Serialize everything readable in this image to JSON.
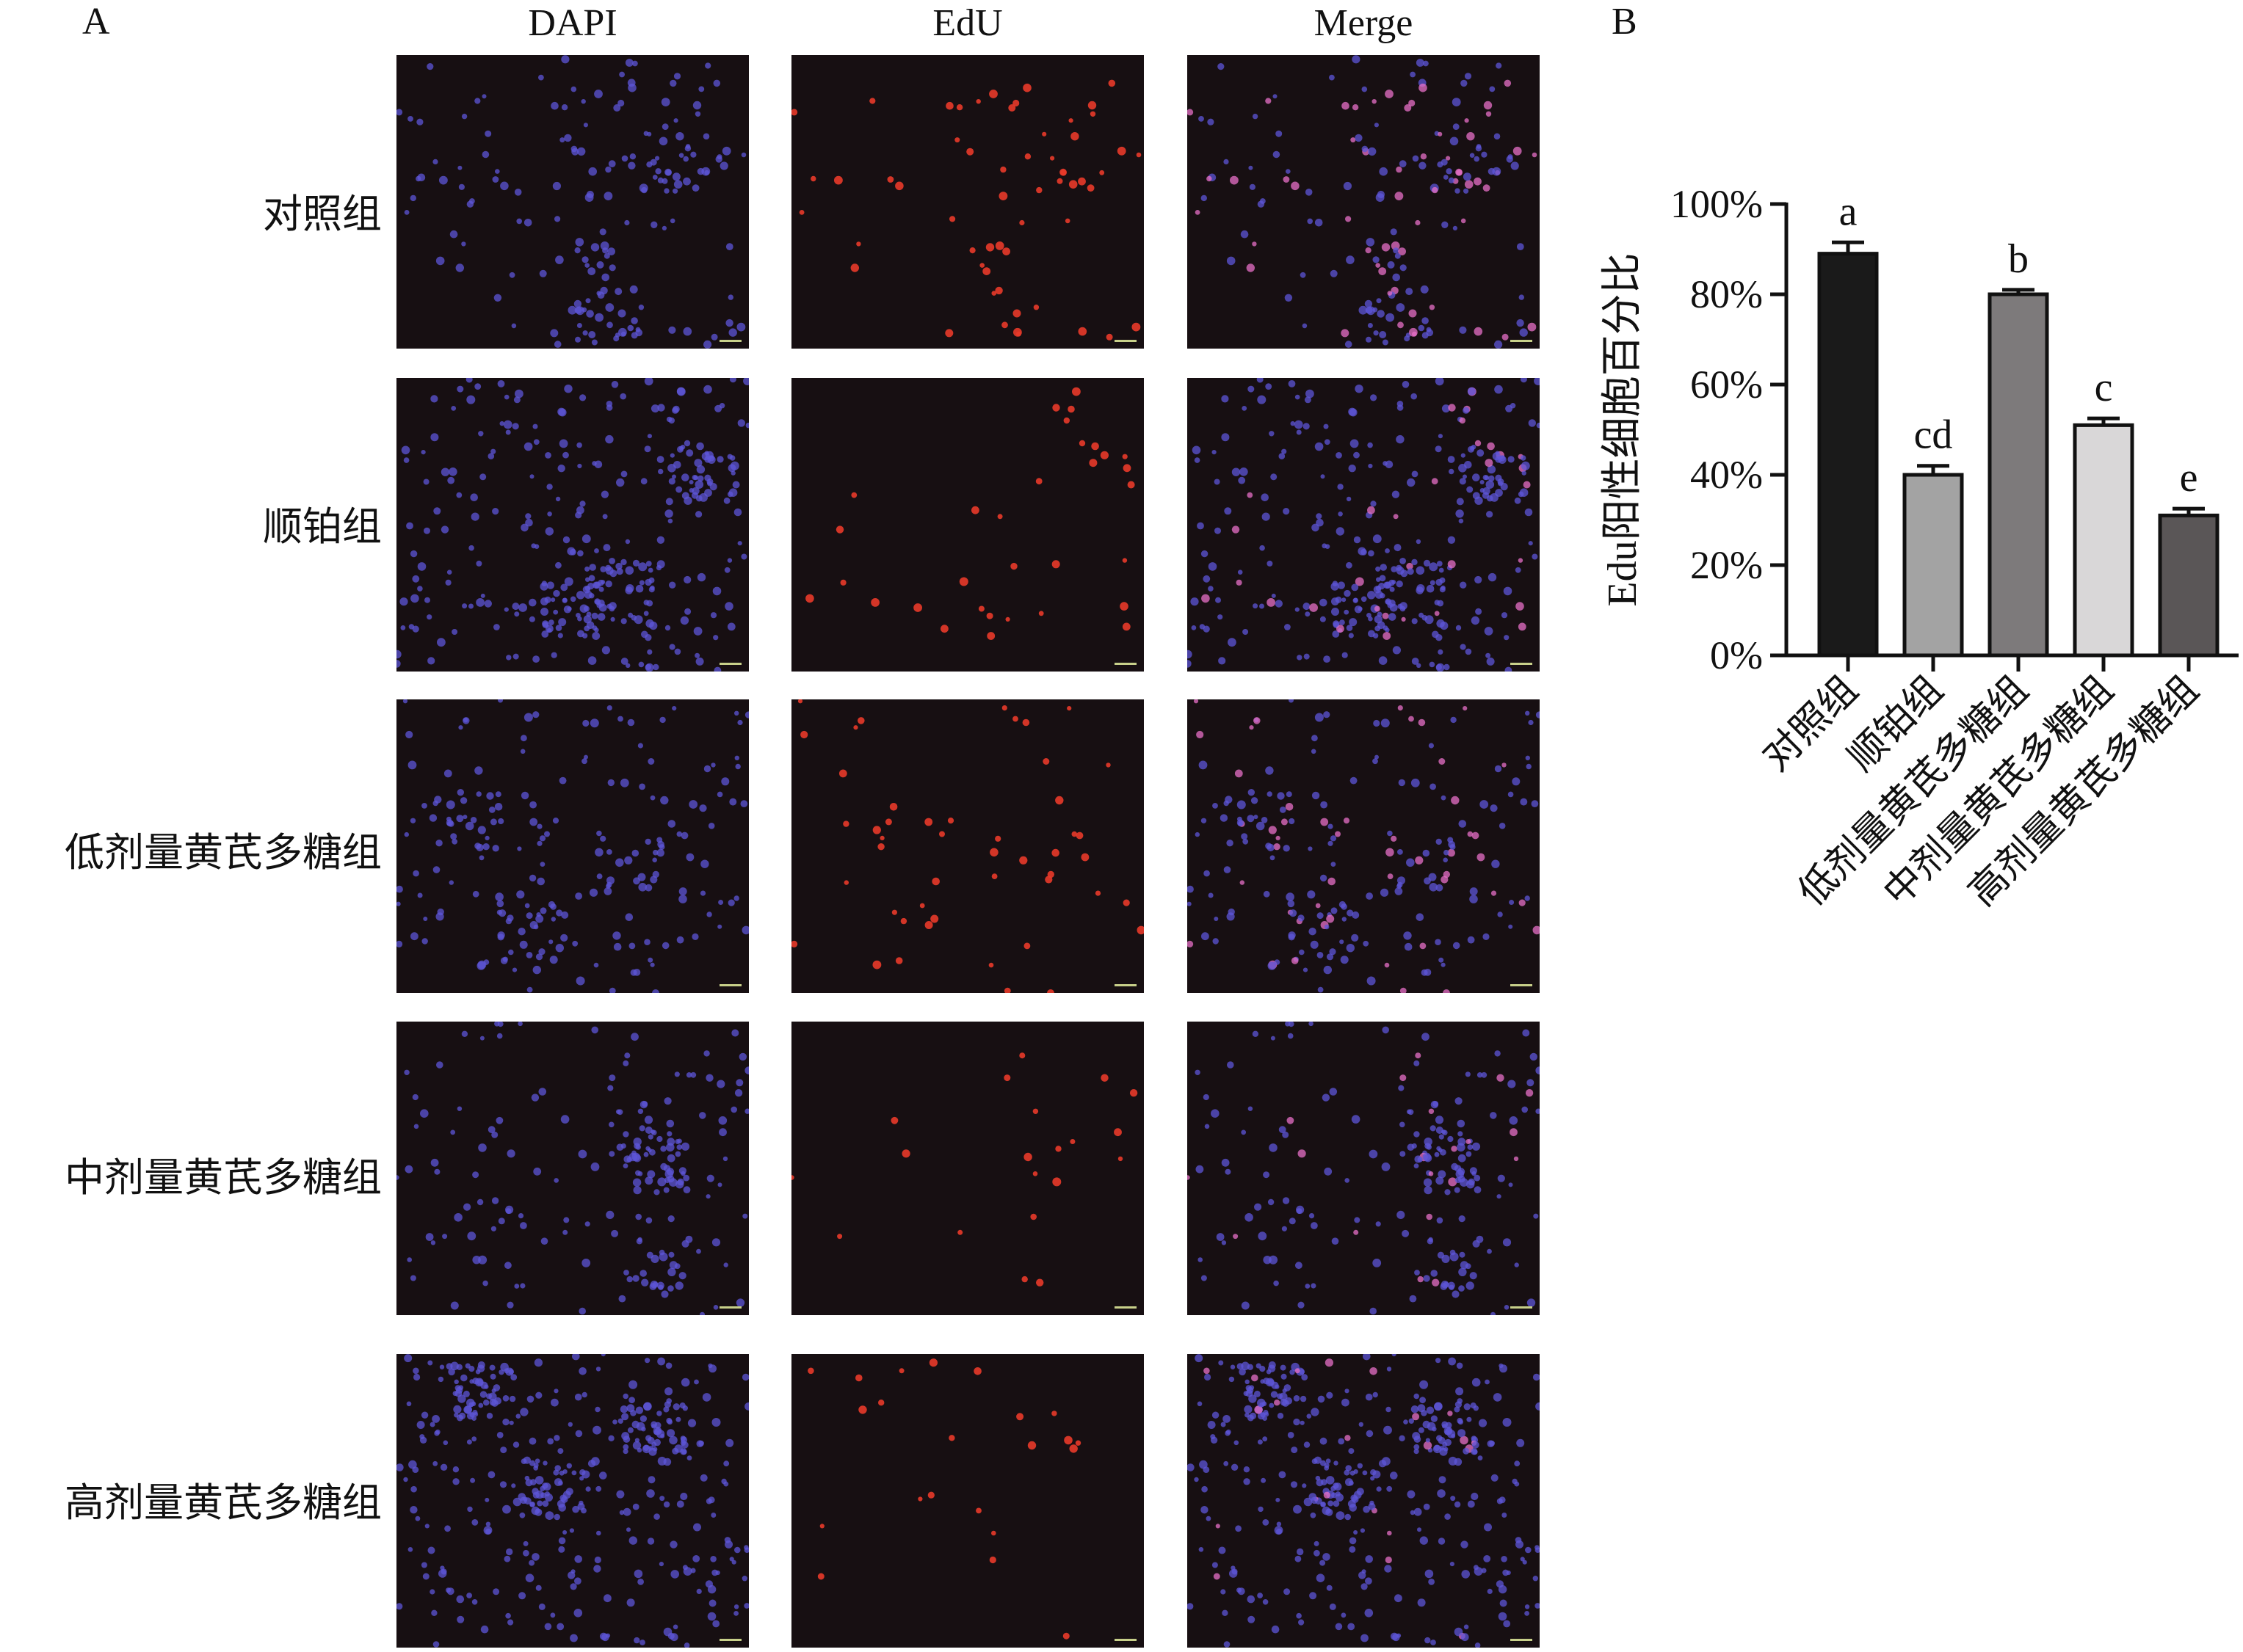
{
  "panel_a": {
    "letter": "A",
    "columns": [
      "DAPI",
      "EdU",
      "Merge"
    ],
    "rows": [
      "对照组",
      "顺铂组",
      "低剂量黄芪多糖组",
      "中剂量黄芪多糖组",
      "高剂量黄芪多糖组"
    ],
    "colors": {
      "background": "#170f12",
      "dapi": "#5d55d8",
      "edu": "#e83a2a",
      "merge": "#e870c8"
    }
  },
  "panel_b": {
    "letter": "B"
  },
  "chart_data": {
    "type": "bar",
    "title": "",
    "xlabel": "",
    "ylabel": "Edu阳性细胞百分比",
    "categories": [
      "对照组",
      "顺铂组",
      "低剂量黄芪多糖组",
      "中剂量黄芪多糖组",
      "高剂量黄芪多糖组"
    ],
    "values": [
      89,
      40,
      80,
      51,
      31
    ],
    "error": [
      2.5,
      2,
      1,
      1.5,
      1.5
    ],
    "annotations": [
      "a",
      "cd",
      "b",
      "c",
      "e"
    ],
    "bar_colors": [
      "#1a1a1a",
      "#a3a3a3",
      "#7d7a7b",
      "#d9d7d8",
      "#5a5657"
    ],
    "ylim": [
      0,
      100
    ],
    "yticks": [
      0,
      20,
      40,
      60,
      80,
      100
    ],
    "ytick_labels": [
      "0%",
      "20%",
      "40%",
      "60%",
      "80%",
      "100%"
    ],
    "grid": false,
    "legend": "none"
  }
}
